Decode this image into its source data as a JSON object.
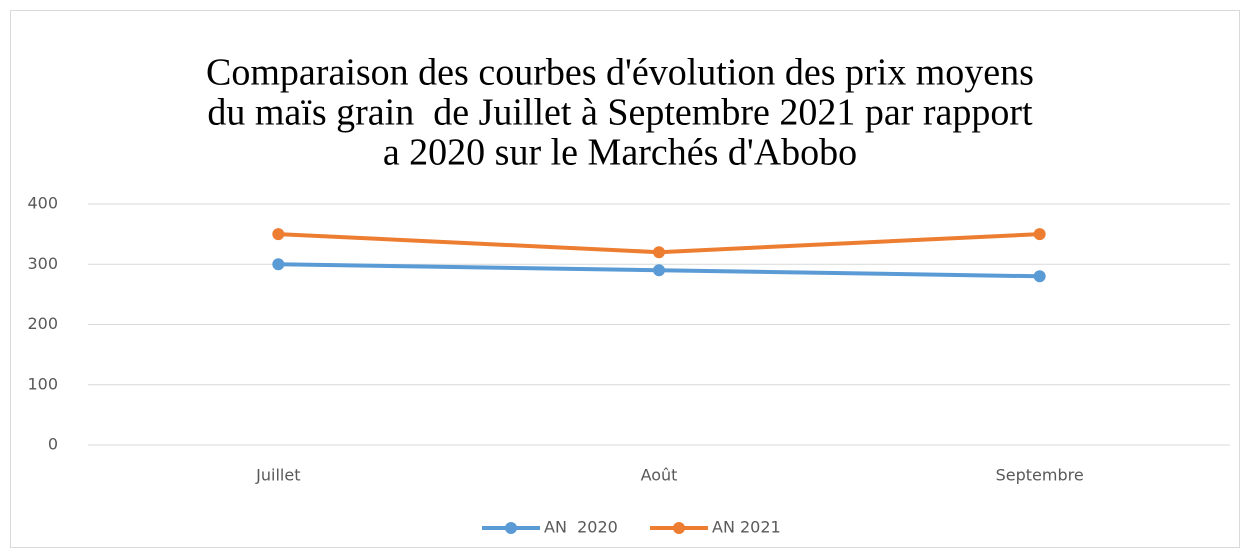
{
  "chart_data": {
    "type": "line",
    "title": [
      "Comparaison des courbes d'évolution des prix moyens",
      "du maïs grain  de Juillet à Septembre 2021 par rapport",
      "a 2020 sur le Marchés d'Abobo"
    ],
    "categories": [
      "Juillet",
      "Août",
      "Septembre"
    ],
    "series": [
      {
        "name": "AN  2020",
        "color": "#5b9bd5",
        "values": [
          300,
          290,
          280
        ]
      },
      {
        "name": "AN 2021",
        "color": "#ed7d31",
        "values": [
          350,
          320,
          350
        ]
      }
    ],
    "ylim": [
      0,
      400
    ],
    "yticks": [
      0,
      100,
      200,
      300,
      400
    ],
    "grid": true,
    "legend": "bottom"
  }
}
